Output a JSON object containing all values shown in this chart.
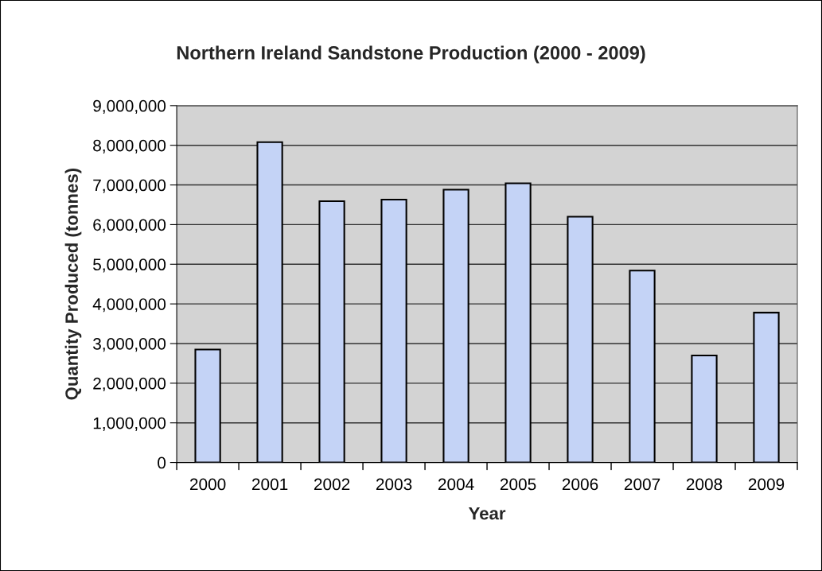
{
  "chart_data": {
    "type": "bar",
    "title": "Northern Ireland Sandstone Production (2000 - 2009)",
    "xlabel": "Year",
    "ylabel": "Quantity Produced (tonnes)",
    "categories": [
      "2000",
      "2001",
      "2002",
      "2003",
      "2004",
      "2005",
      "2006",
      "2007",
      "2008",
      "2009"
    ],
    "values": [
      2850000,
      8080000,
      6590000,
      6630000,
      6880000,
      7040000,
      6200000,
      4840000,
      2700000,
      3780000
    ],
    "color": "#c4d3f6",
    "ylim": [
      0,
      9000000
    ],
    "yticks": [
      {
        "value": 0,
        "label": "0"
      },
      {
        "value": 1000000,
        "label": "1,000,000"
      },
      {
        "value": 2000000,
        "label": "2,000,000"
      },
      {
        "value": 3000000,
        "label": "3,000,000"
      },
      {
        "value": 4000000,
        "label": "4,000,000"
      },
      {
        "value": 5000000,
        "label": "5,000,000"
      },
      {
        "value": 6000000,
        "label": "6,000,000"
      },
      {
        "value": 7000000,
        "label": "7,000,000"
      },
      {
        "value": 8000000,
        "label": "8,000,000"
      },
      {
        "value": 9000000,
        "label": "9,000,000"
      }
    ],
    "grid": "y",
    "legend": false
  }
}
